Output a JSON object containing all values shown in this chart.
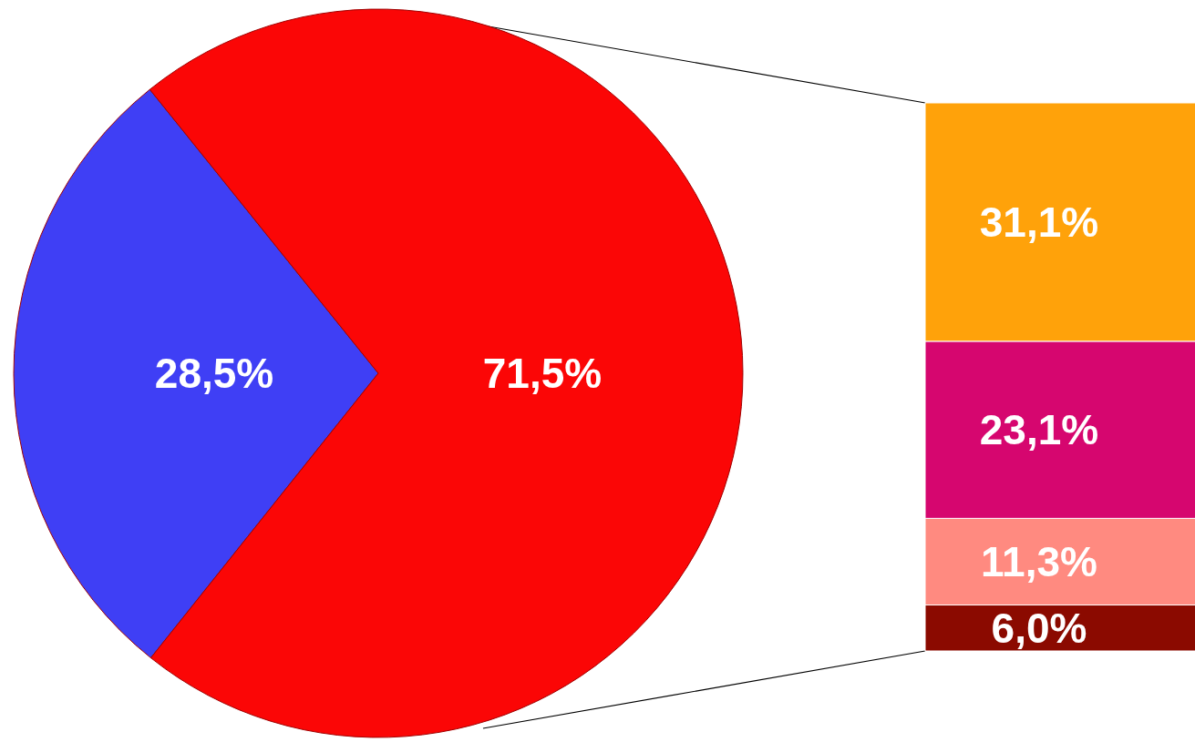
{
  "chart_data": [
    {
      "type": "pie",
      "categories": [
        null,
        null
      ],
      "values": [
        28.5,
        71.5
      ],
      "colors": [
        "#3f3ff5",
        "#fb0606"
      ],
      "value_labels": [
        "28,5%",
        "71,5%"
      ]
    },
    {
      "type": "bar",
      "stacked": true,
      "categories": [
        null
      ],
      "series": [
        {
          "color": "#8b0a00",
          "values": [
            6.0
          ],
          "value_labels": [
            "6,0%"
          ]
        },
        {
          "color": "#ff8a80",
          "values": [
            11.3
          ],
          "value_labels": [
            "11,3%"
          ]
        },
        {
          "color": "#d6066f",
          "values": [
            23.1
          ],
          "value_labels": [
            "23,1%"
          ]
        },
        {
          "color": "#ffa20a",
          "values": [
            31.1
          ],
          "value_labels": [
            "31,1%"
          ]
        }
      ]
    }
  ]
}
